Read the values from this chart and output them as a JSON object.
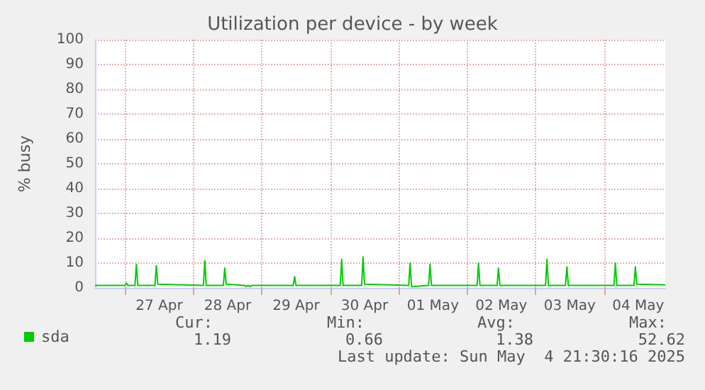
{
  "chart_data": {
    "type": "line",
    "title": "Utilization per device - by week",
    "ylabel": "% busy",
    "x": [
      "2025-04-26T13:30",
      "2025-04-27T00:00",
      "2025-04-27T00:30",
      "2025-04-27T01:00",
      "2025-04-27T03:30",
      "2025-04-27T04:00",
      "2025-04-27T04:30",
      "2025-04-27T10:30",
      "2025-04-27T11:00",
      "2025-04-27T11:30",
      "2025-04-28T03:30",
      "2025-04-28T04:00",
      "2025-04-28T04:30",
      "2025-04-28T10:30",
      "2025-04-28T11:00",
      "2025-04-28T11:30",
      "2025-04-28T18:00",
      "2025-04-28T18:30",
      "2025-04-28T19:00",
      "2025-04-28T20:00",
      "2025-04-28T20:30",
      "2025-04-29T11:00",
      "2025-04-29T11:30",
      "2025-04-29T12:00",
      "2025-04-30T03:30",
      "2025-04-30T04:00",
      "2025-04-30T04:30",
      "2025-04-30T11:00",
      "2025-04-30T11:30",
      "2025-04-30T12:00",
      "2025-05-01T03:30",
      "2025-05-01T04:00",
      "2025-05-01T04:30",
      "2025-05-01T10:30",
      "2025-05-01T11:00",
      "2025-05-01T11:30",
      "2025-05-02T03:30",
      "2025-05-02T04:00",
      "2025-05-02T04:30",
      "2025-05-02T10:30",
      "2025-05-02T11:00",
      "2025-05-02T11:30",
      "2025-05-03T03:30",
      "2025-05-03T04:00",
      "2025-05-03T04:30",
      "2025-05-03T10:30",
      "2025-05-03T11:00",
      "2025-05-03T11:30",
      "2025-05-04T03:30",
      "2025-05-04T04:00",
      "2025-05-04T04:30",
      "2025-05-04T10:30",
      "2025-05-04T11:00",
      "2025-05-04T11:30",
      "2025-05-04T21:30"
    ],
    "series": [
      {
        "name": "sda",
        "color": "#00cc00",
        "values": [
          1,
          1,
          2,
          1,
          1,
          9.5,
          1,
          1,
          9,
          1.5,
          1,
          11,
          1,
          1,
          8,
          1.5,
          1,
          0.5,
          1,
          0.5,
          1,
          1,
          4.5,
          1,
          1,
          11.5,
          1,
          1,
          12.5,
          1.5,
          1,
          10,
          0.5,
          1,
          9.5,
          1,
          1,
          10,
          1,
          1,
          8,
          1,
          1,
          11.5,
          1,
          1,
          8.5,
          1,
          1,
          10,
          1,
          1,
          8.5,
          1.5,
          1.2
        ]
      }
    ],
    "xlim": [
      "2025-04-26T13:30",
      "2025-05-04T21:30"
    ],
    "xticks": [
      {
        "value": "2025-04-27T00:00",
        "label": null
      },
      {
        "value": "2025-04-27T12:00",
        "label": "27 Apr"
      },
      {
        "value": "2025-04-28T00:00",
        "label": null
      },
      {
        "value": "2025-04-28T12:00",
        "label": "28 Apr"
      },
      {
        "value": "2025-04-29T00:00",
        "label": null
      },
      {
        "value": "2025-04-29T12:00",
        "label": "29 Apr"
      },
      {
        "value": "2025-04-30T00:00",
        "label": null
      },
      {
        "value": "2025-04-30T12:00",
        "label": "30 Apr"
      },
      {
        "value": "2025-05-01T00:00",
        "label": null
      },
      {
        "value": "2025-05-01T12:00",
        "label": "01 May"
      },
      {
        "value": "2025-05-02T00:00",
        "label": null
      },
      {
        "value": "2025-05-02T12:00",
        "label": "02 May"
      },
      {
        "value": "2025-05-03T00:00",
        "label": null
      },
      {
        "value": "2025-05-03T12:00",
        "label": "03 May"
      },
      {
        "value": "2025-05-04T00:00",
        "label": null
      },
      {
        "value": "2025-05-04T12:00",
        "label": "04 May"
      }
    ],
    "ylim": [
      0,
      100
    ],
    "yticks": [
      0,
      10,
      20,
      30,
      40,
      50,
      60,
      70,
      80,
      90,
      100
    ],
    "grid": true,
    "legend": "bottom left",
    "marker": "none",
    "line_style": "solid",
    "annotations": [
      "Cur:",
      "Min:",
      "Avg:",
      "Max:",
      "1.19",
      "0.66",
      "1.38",
      "52.62",
      "Last update: Sun May  4 21:30:16 2025"
    ]
  }
}
